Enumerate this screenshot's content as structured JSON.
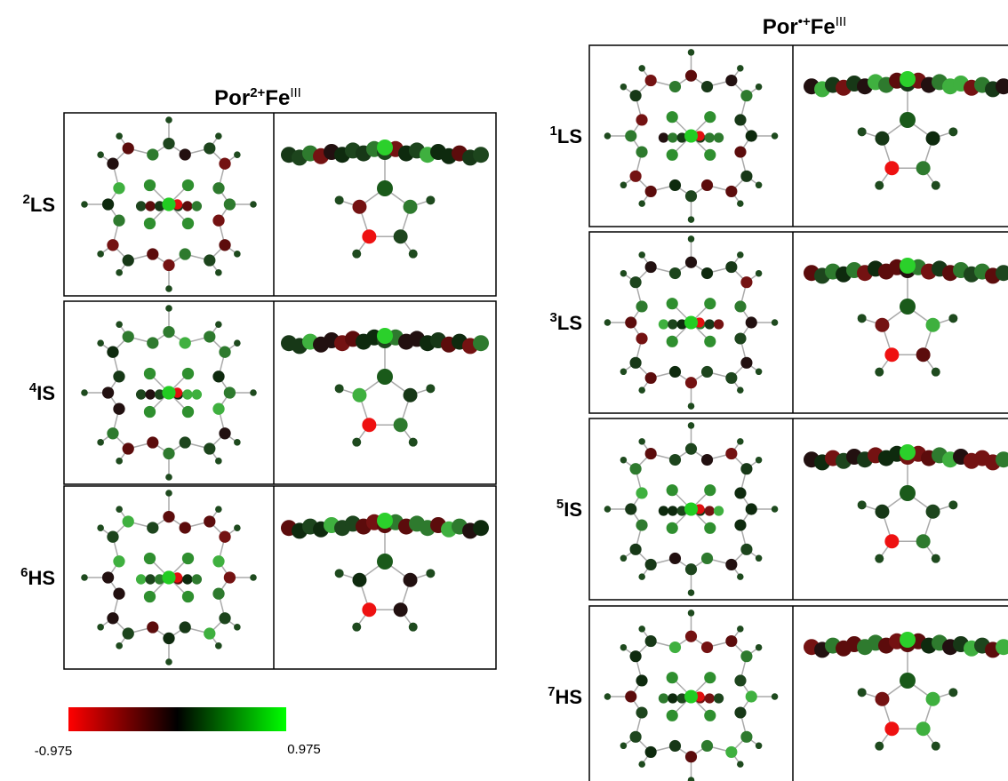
{
  "left_panel": {
    "title": {
      "base": "Por",
      "charge": "2+",
      "metal": "Fe",
      "oxidation": "III"
    },
    "rows": [
      {
        "multiplicity": 2,
        "state": "LS"
      },
      {
        "multiplicity": 4,
        "state": "IS"
      },
      {
        "multiplicity": 6,
        "state": "HS"
      }
    ]
  },
  "right_panel": {
    "title": {
      "base": "Por",
      "charge": "•+",
      "metal": "Fe",
      "oxidation": "III"
    },
    "rows": [
      {
        "multiplicity": 1,
        "state": "LS"
      },
      {
        "multiplicity": 3,
        "state": "LS"
      },
      {
        "multiplicity": 5,
        "state": "IS"
      },
      {
        "multiplicity": 7,
        "state": "HS"
      }
    ]
  },
  "colorbar": {
    "min": -0.975,
    "max": 0.975
  }
}
